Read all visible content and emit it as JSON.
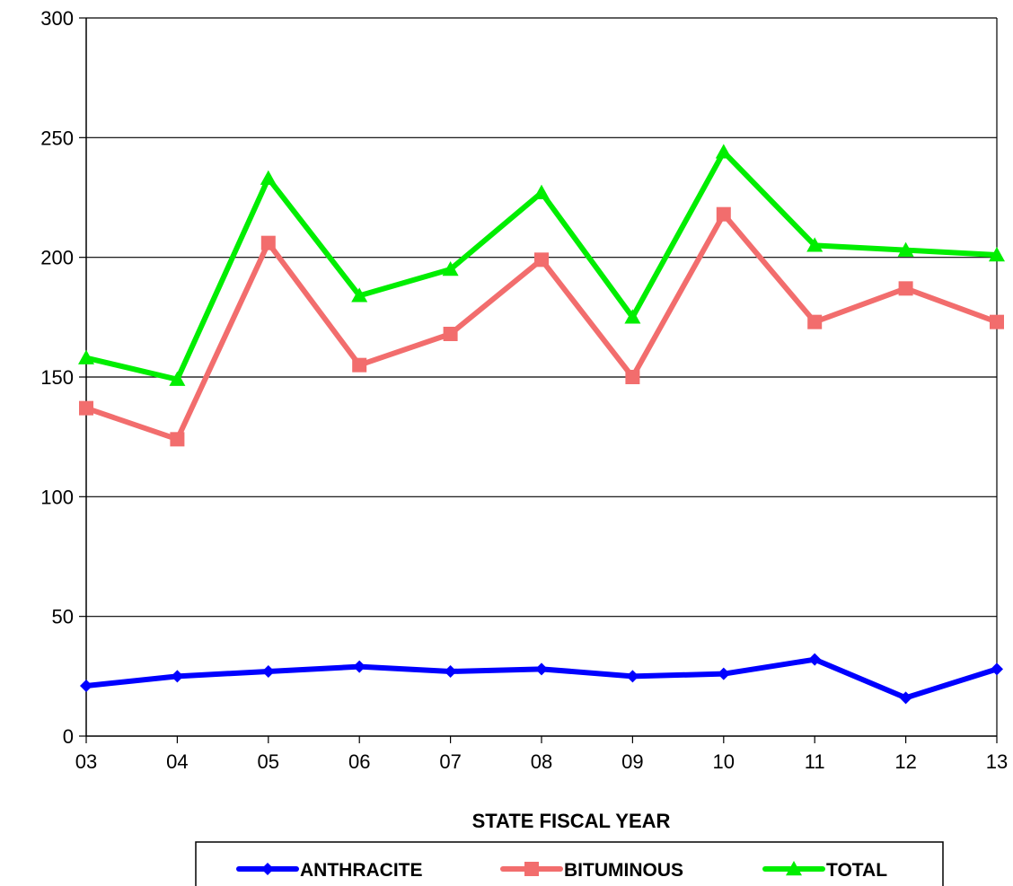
{
  "chart_data": {
    "type": "line",
    "categories": [
      "03",
      "04",
      "05",
      "06",
      "07",
      "08",
      "09",
      "10",
      "11",
      "12",
      "13"
    ],
    "xlabel": "STATE FISCAL YEAR",
    "ylabel": "",
    "title": "",
    "ylim": [
      0,
      300
    ],
    "yticks": [
      0,
      50,
      100,
      150,
      200,
      250,
      300
    ],
    "grid": true,
    "legend_position": "bottom",
    "series": [
      {
        "name": "ANTHRACITE",
        "color": "#0000FF",
        "marker": "diamond",
        "values": [
          21,
          25,
          27,
          29,
          27,
          28,
          25,
          26,
          32,
          16,
          28
        ]
      },
      {
        "name": "BITUMINOUS",
        "color": "#F26D6D",
        "marker": "square",
        "values": [
          137,
          124,
          206,
          155,
          168,
          199,
          150,
          218,
          173,
          187,
          173
        ]
      },
      {
        "name": "TOTAL",
        "color": "#00EE00",
        "marker": "triangle",
        "values": [
          158,
          149,
          233,
          184,
          195,
          227,
          175,
          244,
          205,
          203,
          201
        ]
      }
    ]
  }
}
